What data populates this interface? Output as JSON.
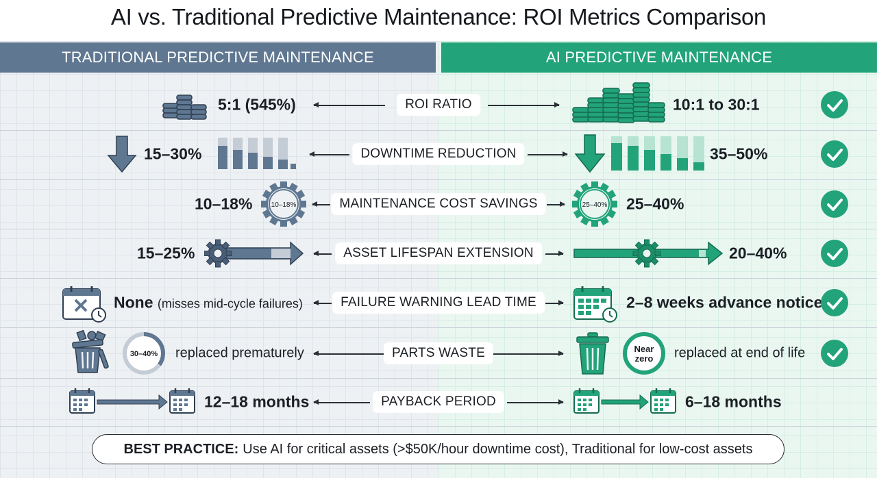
{
  "title": "AI vs. Traditional Predictive Maintenance: ROI Metrics Comparison",
  "headers": {
    "traditional": "TRADITIONAL PREDICTIVE MAINTENANCE",
    "ai": "AI PREDICTIVE MAINTENANCE"
  },
  "colors": {
    "traditional": "#5f7791",
    "ai": "#22a37a",
    "check": "#22a37a"
  },
  "metrics": [
    {
      "label": "ROI RATIO",
      "traditional": "5:1 (545%)",
      "ai": "10:1 to 30:1",
      "traditional_icon": "coin-stacks-icon",
      "ai_icon": "coin-stacks-icon"
    },
    {
      "label": "DOWNTIME REDUCTION",
      "traditional": "15–30%",
      "ai": "35–50%",
      "traditional_icon": "down-arrow-bars-icon",
      "ai_icon": "down-arrow-bars-icon"
    },
    {
      "label": "MAINTENANCE COST SAVINGS",
      "traditional": "10–18%",
      "ai": "25–40%",
      "traditional_badge": "10–18%",
      "ai_badge": "25–40%"
    },
    {
      "label": "ASSET LIFESPAN EXTENSION",
      "traditional": "15–25%",
      "ai": "20–40%",
      "traditional_icon": "gear-arrow-icon",
      "ai_icon": "gear-arrow-icon"
    },
    {
      "label": "FAILURE WARNING LEAD TIME",
      "traditional": "None",
      "traditional_note": "(misses mid-cycle failures)",
      "ai": "2–8 weeks advance notice",
      "traditional_icon": "calendar-x-icon",
      "ai_icon": "calendar-clock-icon"
    },
    {
      "label": "PARTS WASTE",
      "traditional_badge": "30–40%",
      "traditional": "replaced prematurely",
      "ai_badge_1": "Near",
      "ai_badge_2": "zero",
      "ai": "replaced at end of life",
      "traditional_icon": "trash-overflow-icon",
      "ai_icon": "trash-icon"
    },
    {
      "label": "PAYBACK PERIOD",
      "traditional": "12–18 months",
      "ai": "6–18 months",
      "traditional_icon": "calendar-arrow-icon",
      "ai_icon": "calendar-arrow-icon"
    }
  ],
  "best_practice": {
    "label": "BEST PRACTICE:",
    "text": "Use AI for critical assets (>$50K/hour downtime cost), Traditional for low-cost assets"
  }
}
